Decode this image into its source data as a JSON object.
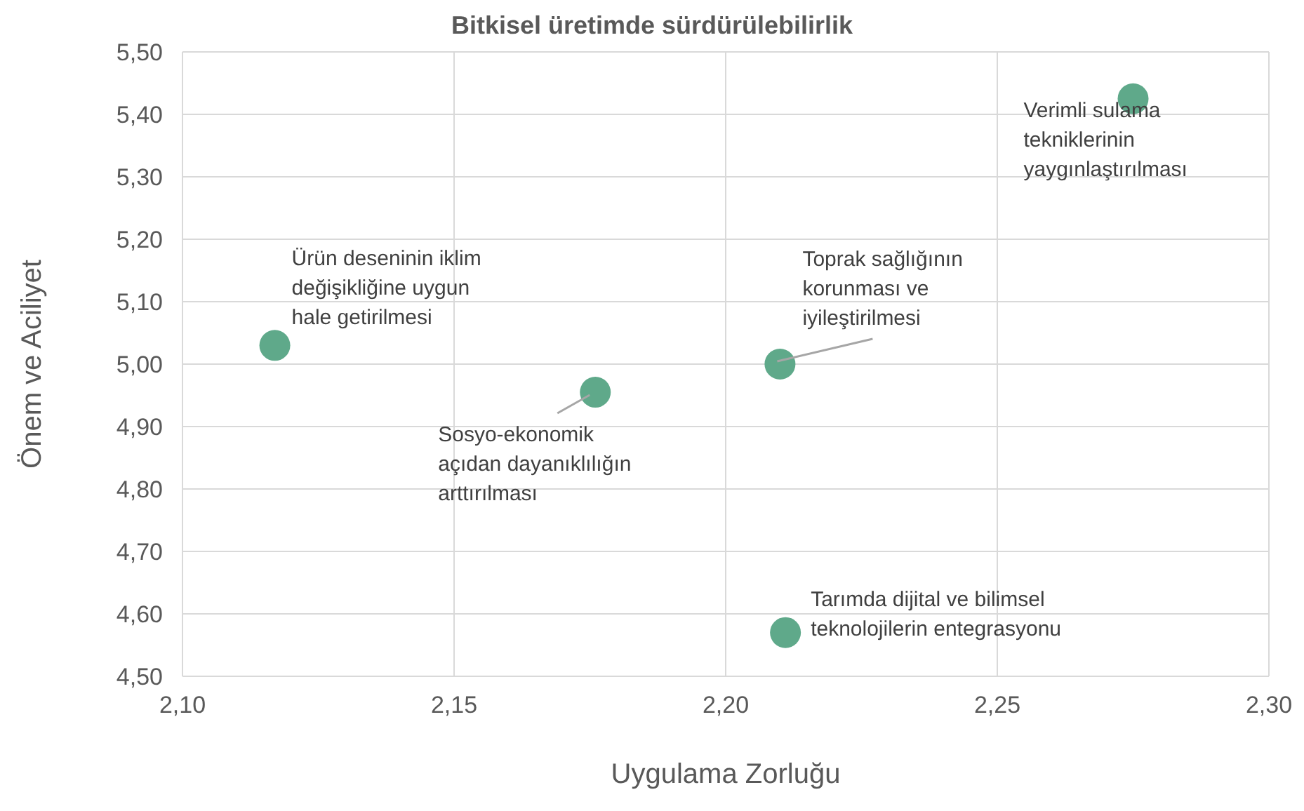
{
  "chart_data": {
    "type": "scatter",
    "title": "Bitkisel üretimde sürdürülebilirlik",
    "xlabel": "Uygulama Zorluğu",
    "ylabel": "Önem ve Aciliyet",
    "x": [
      2.117,
      2.176,
      2.21,
      2.211,
      2.275
    ],
    "series": [
      {
        "color": "#5fa98a",
        "values": [
          5.03,
          4.955,
          5.0,
          4.57,
          5.425
        ]
      }
    ],
    "xlim": [
      2.1,
      2.3
    ],
    "xticks": [
      {
        "value": 2.1,
        "label": "2,10"
      },
      {
        "value": 2.15,
        "label": "2,15"
      },
      {
        "value": 2.2,
        "label": "2,20"
      },
      {
        "value": 2.25,
        "label": "2,25"
      },
      {
        "value": 2.3,
        "label": "2,30"
      }
    ],
    "ylim": [
      4.5,
      5.5
    ],
    "yticks": [
      {
        "value": 4.5,
        "label": "4,50"
      },
      {
        "value": 4.6,
        "label": "4,60"
      },
      {
        "value": 4.7,
        "label": "4,70"
      },
      {
        "value": 4.8,
        "label": "4,80"
      },
      {
        "value": 4.9,
        "label": "4,90"
      },
      {
        "value": 5.0,
        "label": "5,00"
      },
      {
        "value": 5.1,
        "label": "5,10"
      },
      {
        "value": 5.2,
        "label": "5,20"
      },
      {
        "value": 5.3,
        "label": "5,30"
      },
      {
        "value": 5.4,
        "label": "5,40"
      },
      {
        "value": 5.5,
        "label": "5,50"
      }
    ],
    "grid": true,
    "legend": false,
    "marker": "circle",
    "annotations": [
      {
        "text": "Ürün deseninin iklim\ndeğişikliğine uygun\nhale getirilmesi",
        "x": 2.117,
        "y": 5.03
      },
      {
        "text": "Sosyo-ekonomik\naçıdan dayanıklılığın\narttırılması",
        "x": 2.176,
        "y": 4.955
      },
      {
        "text": "Toprak sağlığının\nkorunması ve\niyileştirilmesi",
        "x": 2.21,
        "y": 5.0
      },
      {
        "text": "Tarımda dijital ve bilimsel\nteknolojilerin entegrasyonu",
        "x": 2.211,
        "y": 4.57
      },
      {
        "text": "Verimli sulama\ntekniklerinin\nyaygınlaştırılması",
        "x": 2.275,
        "y": 5.425
      }
    ]
  }
}
